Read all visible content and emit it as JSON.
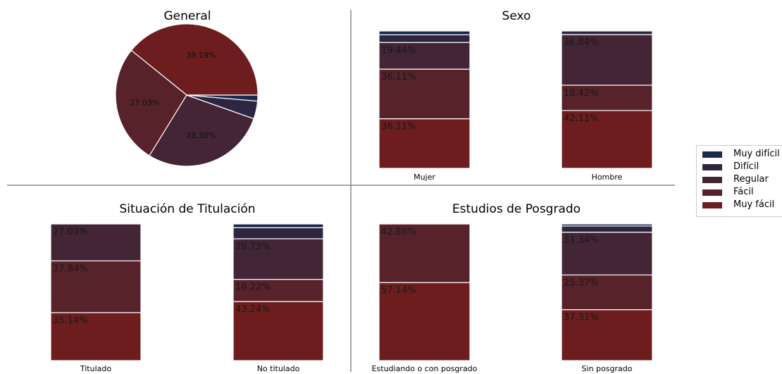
{
  "colors": {
    "muy_dificil": "#1b2a4e",
    "dificil": "#2e2640",
    "regular": "#442535",
    "facil": "#57222a",
    "muy_facil": "#6d1d1e",
    "divider": "#8a8a8a"
  },
  "legend": {
    "items": [
      {
        "label": "Muy difícil",
        "color": "#1b2a4e"
      },
      {
        "label": "Difícil",
        "color": "#2e2640"
      },
      {
        "label": "Regular",
        "color": "#442535"
      },
      {
        "label": "Fácil",
        "color": "#57222a"
      },
      {
        "label": "Muy fácil",
        "color": "#6d1d1e"
      }
    ]
  },
  "chart_data": [
    {
      "type": "pie",
      "title": "General",
      "labels": [
        "Muy fácil",
        "Fácil",
        "Regular",
        "Difícil",
        "Muy difícil"
      ],
      "values": [
        39.19,
        27.03,
        28.38,
        4.05,
        1.35
      ],
      "value_labels": [
        "39.19%",
        "27.03%",
        "28.38%",
        "",
        ""
      ]
    },
    {
      "type": "bar",
      "stacked": true,
      "title": "Sexo",
      "categories": [
        "Mujer",
        "Hombre"
      ],
      "series": [
        {
          "name": "Muy fácil",
          "values": [
            36.11,
            42.11
          ],
          "labels": [
            "36.11%",
            "42.11%"
          ]
        },
        {
          "name": "Fácil",
          "values": [
            36.11,
            18.42
          ],
          "labels": [
            "36.11%",
            "18.42%"
          ]
        },
        {
          "name": "Regular",
          "values": [
            19.44,
            36.84
          ],
          "labels": [
            "19.44%",
            "36.84%"
          ]
        },
        {
          "name": "Difícil",
          "values": [
            5.56,
            2.63
          ],
          "labels": [
            "",
            ""
          ]
        },
        {
          "name": "Muy difícil",
          "values": [
            2.78,
            0
          ],
          "labels": [
            "",
            ""
          ]
        }
      ],
      "ylim": [
        0,
        100
      ]
    },
    {
      "type": "bar",
      "stacked": true,
      "title": "Situación de Titulación",
      "categories": [
        "Titulado",
        "No titulado"
      ],
      "series": [
        {
          "name": "Muy fácil",
          "values": [
            35.14,
            43.24
          ],
          "labels": [
            "35.14%",
            "43.24%"
          ]
        },
        {
          "name": "Fácil",
          "values": [
            37.84,
            16.22
          ],
          "labels": [
            "37.84%",
            "16.22%"
          ]
        },
        {
          "name": "Regular",
          "values": [
            27.03,
            29.73
          ],
          "labels": [
            "27.03%",
            "29.73%"
          ]
        },
        {
          "name": "Difícil",
          "values": [
            0,
            8.11
          ],
          "labels": [
            "",
            ""
          ]
        },
        {
          "name": "Muy difícil",
          "values": [
            0,
            2.7
          ],
          "labels": [
            "",
            ""
          ]
        }
      ],
      "ylim": [
        0,
        100
      ]
    },
    {
      "type": "bar",
      "stacked": true,
      "title": "Estudios de Posgrado",
      "categories": [
        "Estudiando o con posgrado",
        "Sin posgrado"
      ],
      "series": [
        {
          "name": "Muy fácil",
          "values": [
            57.14,
            37.31
          ],
          "labels": [
            "57.14%",
            "37.31%"
          ]
        },
        {
          "name": "Fácil",
          "values": [
            42.86,
            25.37
          ],
          "labels": [
            "42.86%",
            "25.37%"
          ]
        },
        {
          "name": "Regular",
          "values": [
            0,
            31.34
          ],
          "labels": [
            "",
            "31.34%"
          ]
        },
        {
          "name": "Difícil",
          "values": [
            0,
            4.48
          ],
          "labels": [
            "",
            ""
          ]
        },
        {
          "name": "Muy difícil",
          "values": [
            0,
            1.49
          ],
          "labels": [
            "",
            ""
          ]
        }
      ],
      "ylim": [
        0,
        100
      ]
    }
  ]
}
